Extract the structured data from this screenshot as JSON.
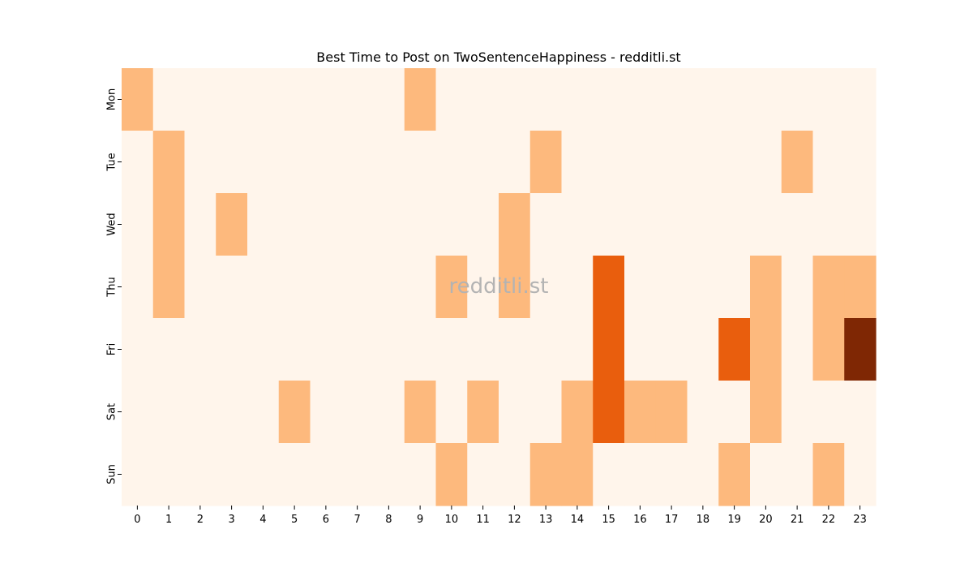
{
  "chart_data": {
    "type": "heatmap",
    "title": "Best Time to Post on TwoSentenceHappiness - redditli.st",
    "watermark": "redditli.st",
    "xlabel": "",
    "ylabel": "",
    "x_categories": [
      "0",
      "1",
      "2",
      "3",
      "4",
      "5",
      "6",
      "7",
      "8",
      "9",
      "10",
      "11",
      "12",
      "13",
      "14",
      "15",
      "16",
      "17",
      "18",
      "19",
      "20",
      "21",
      "22",
      "23"
    ],
    "y_categories": [
      "Mon",
      "Tue",
      "Wed",
      "Thu",
      "Fri",
      "Sat",
      "Sun"
    ],
    "values": [
      [
        1,
        0,
        0,
        0,
        0,
        0,
        0,
        0,
        0,
        1,
        0,
        0,
        0,
        0,
        0,
        0,
        0,
        0,
        0,
        0,
        0,
        0,
        0,
        0
      ],
      [
        0,
        1,
        0,
        0,
        0,
        0,
        0,
        0,
        0,
        0,
        0,
        0,
        0,
        1,
        0,
        0,
        0,
        0,
        0,
        0,
        0,
        1,
        0,
        0
      ],
      [
        0,
        1,
        0,
        1,
        0,
        0,
        0,
        0,
        0,
        0,
        0,
        0,
        1,
        0,
        0,
        0,
        0,
        0,
        0,
        0,
        0,
        0,
        0,
        0
      ],
      [
        0,
        1,
        0,
        0,
        0,
        0,
        0,
        0,
        0,
        0,
        1,
        0,
        1,
        0,
        0,
        2,
        0,
        0,
        0,
        0,
        1,
        0,
        1,
        1
      ],
      [
        0,
        0,
        0,
        0,
        0,
        0,
        0,
        0,
        0,
        0,
        0,
        0,
        0,
        0,
        0,
        2,
        0,
        0,
        0,
        2,
        1,
        0,
        1,
        3
      ],
      [
        0,
        0,
        0,
        0,
        0,
        1,
        0,
        0,
        0,
        1,
        0,
        1,
        0,
        0,
        1,
        2,
        1,
        1,
        0,
        0,
        1,
        0,
        0,
        0
      ],
      [
        0,
        0,
        0,
        0,
        0,
        0,
        0,
        0,
        0,
        0,
        1,
        0,
        0,
        1,
        1,
        0,
        0,
        0,
        0,
        1,
        0,
        0,
        1,
        0
      ]
    ],
    "value_range": [
      0,
      3
    ],
    "colormap": "Oranges",
    "level_colors": [
      "#fff5eb",
      "#fdb97d",
      "#e95e0d",
      "#7f2704"
    ],
    "legend": "none",
    "grid": false
  }
}
